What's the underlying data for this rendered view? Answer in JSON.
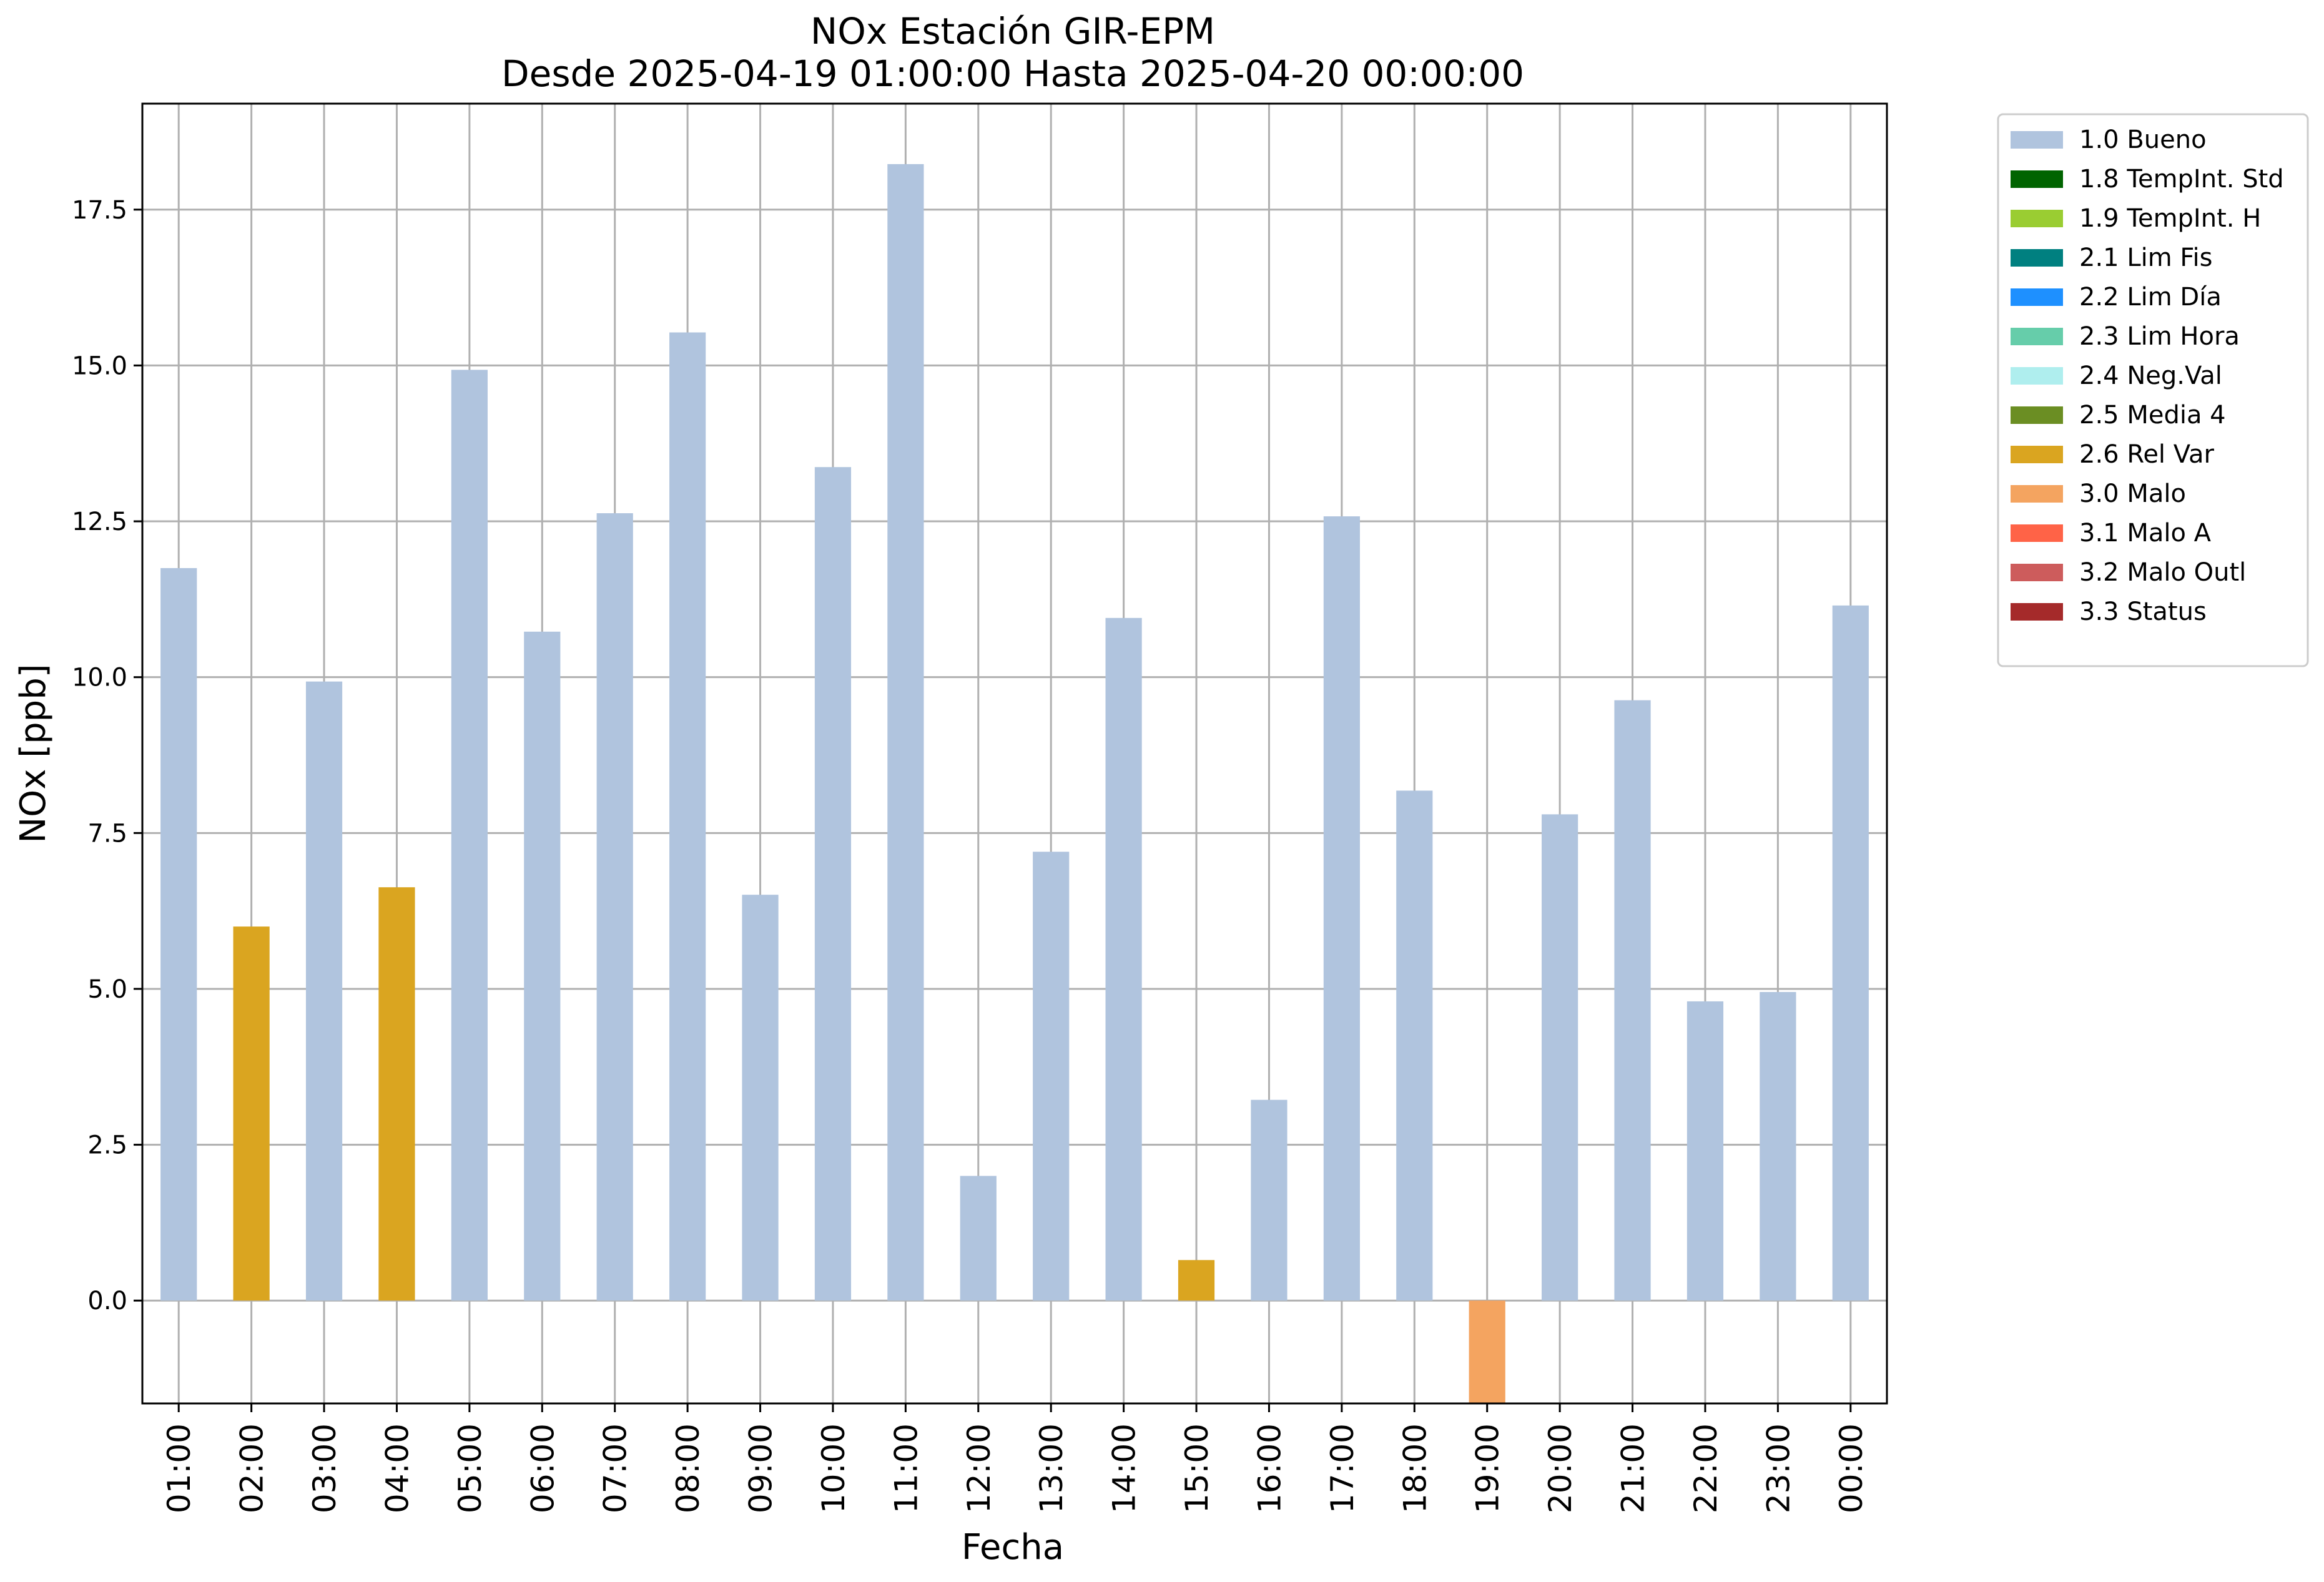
{
  "chart_data": {
    "type": "bar",
    "title": "NOx Estación GIR-EPM",
    "subtitle": "Desde 2025-04-19 01:00:00 Hasta 2025-04-20 00:00:00",
    "xlabel": "Fecha",
    "ylabel": "NOx [ppb]",
    "ylim": [
      -1.65,
      19.2
    ],
    "yticks": [
      "0.0",
      "2.5",
      "5.0",
      "7.5",
      "10.0",
      "12.5",
      "15.0",
      "17.5"
    ],
    "grid": true,
    "legend_position": "outside top-right",
    "categories": [
      "01:00",
      "02:00",
      "03:00",
      "04:00",
      "05:00",
      "06:00",
      "07:00",
      "08:00",
      "09:00",
      "10:00",
      "11:00",
      "12:00",
      "13:00",
      "14:00",
      "15:00",
      "16:00",
      "17:00",
      "18:00",
      "19:00",
      "20:00",
      "21:00",
      "22:00",
      "23:00",
      "00:00"
    ],
    "values": [
      11.75,
      6.0,
      9.93,
      6.63,
      14.93,
      10.73,
      12.63,
      15.53,
      6.51,
      13.37,
      18.23,
      2.0,
      7.2,
      10.95,
      0.65,
      3.22,
      12.58,
      8.18,
      -1.65,
      7.8,
      9.63,
      4.8,
      4.95,
      11.15
    ],
    "flags": [
      "1.0",
      "2.6",
      "1.0",
      "2.6",
      "1.0",
      "1.0",
      "1.0",
      "1.0",
      "1.0",
      "1.0",
      "1.0",
      "1.0",
      "1.0",
      "1.0",
      "2.6",
      "1.0",
      "1.0",
      "1.0",
      "3.0",
      "1.0",
      "1.0",
      "1.0",
      "1.0",
      "1.0"
    ],
    "legend": [
      {
        "code": "1.0",
        "label": "1.0 Bueno",
        "color": "#b0c4de"
      },
      {
        "code": "1.8",
        "label": "1.8 TempInt. Std",
        "color": "#006400"
      },
      {
        "code": "1.9",
        "label": "1.9 TempInt. H",
        "color": "#9acd32"
      },
      {
        "code": "2.1",
        "label": "2.1 Lim Fis",
        "color": "#008080"
      },
      {
        "code": "2.2",
        "label": "2.2 Lim Día",
        "color": "#1e90ff"
      },
      {
        "code": "2.3",
        "label": "2.3 Lim Hora",
        "color": "#66cdaa"
      },
      {
        "code": "2.4",
        "label": "2.4 Neg.Val",
        "color": "#afeeee"
      },
      {
        "code": "2.5",
        "label": "2.5 Media 4",
        "color": "#6b8e23"
      },
      {
        "code": "2.6",
        "label": "2.6 Rel Var",
        "color": "#daa520"
      },
      {
        "code": "3.0",
        "label": "3.0 Malo",
        "color": "#f4a460"
      },
      {
        "code": "3.1",
        "label": "3.1 Malo A",
        "color": "#ff6347"
      },
      {
        "code": "3.2",
        "label": "3.2 Malo Outl",
        "color": "#cd5c5c"
      },
      {
        "code": "3.3",
        "label": "3.3 Status",
        "color": "#a52a2a"
      }
    ]
  }
}
